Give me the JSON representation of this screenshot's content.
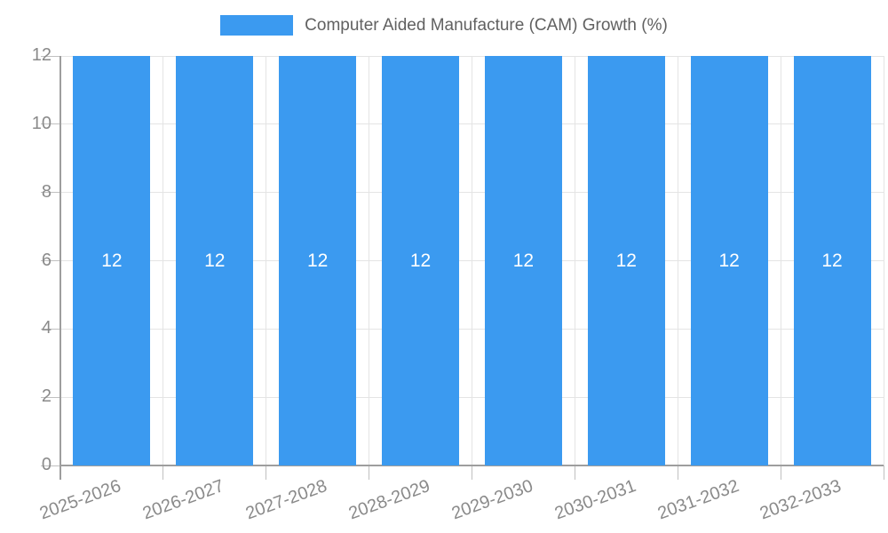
{
  "legend": {
    "label": "Computer Aided Manufacture (CAM) Growth (%)"
  },
  "chart_data": {
    "type": "bar",
    "title": "",
    "legend_position": "top",
    "categories": [
      "2025-2026",
      "2026-2027",
      "2027-2028",
      "2028-2029",
      "2029-2030",
      "2030-2031",
      "2031-2032",
      "2032-2033"
    ],
    "series": [
      {
        "name": "Computer Aided Manufacture (CAM) Growth (%)",
        "values": [
          12,
          12,
          12,
          12,
          12,
          12,
          12,
          12
        ]
      }
    ],
    "bar_value_labels": [
      "12",
      "12",
      "12",
      "12",
      "12",
      "12",
      "12",
      "12"
    ],
    "ylim": [
      0,
      12
    ],
    "yticks": [
      0,
      2,
      4,
      6,
      8,
      10,
      12
    ],
    "grid": true,
    "x_label_rotation_deg": -20,
    "colors": {
      "bar": "#3b9af0",
      "axis_line": "#9e9e9e",
      "gridline": "#e4e4e4",
      "tick_mark": "#c0c0c0",
      "axis_text": "#8a8a8a",
      "legend_text": "#616161",
      "bar_value_text": "#ffffff"
    }
  }
}
